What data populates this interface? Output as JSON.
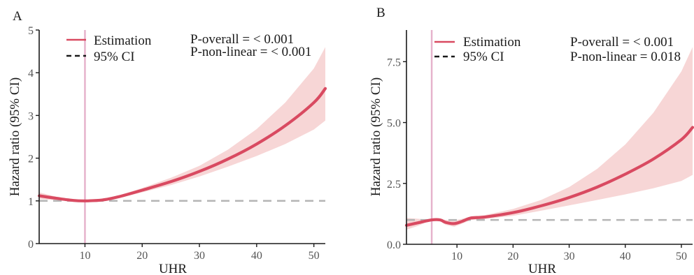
{
  "colors": {
    "estimate": "#d94a61",
    "ci": "#f7d6d6",
    "reference": "#b5b5b5",
    "knot": "#e6b3cc"
  },
  "chart_data": [
    {
      "panel_label": "A",
      "type": "line",
      "xlabel": "UHR",
      "ylabel": "Hazard ratio (95% CI)",
      "xlim": [
        2,
        52
      ],
      "ylim": [
        0,
        5
      ],
      "xticks": [
        "10",
        "20",
        "30",
        "40",
        "50"
      ],
      "yticks": [
        "0",
        "1",
        "2",
        "3",
        "4",
        "5"
      ],
      "knot_x": 10,
      "reference_y": 1,
      "legend": {
        "position": "top-left",
        "estimate_label": "Estimation",
        "ci_label": "95% CI"
      },
      "annotations": [
        "P-overall = < 0.001",
        "P-non-linear = < 0.001"
      ],
      "series": [
        {
          "name": "Estimation",
          "x": [
            2,
            5,
            8,
            10,
            13,
            16,
            20,
            25,
            30,
            35,
            40,
            45,
            50,
            52
          ],
          "values": [
            1.12,
            1.06,
            1.01,
            1.0,
            1.02,
            1.1,
            1.25,
            1.45,
            1.69,
            1.98,
            2.33,
            2.76,
            3.3,
            3.63
          ]
        },
        {
          "name": "95% CI upper",
          "x": [
            2,
            5,
            8,
            10,
            13,
            16,
            20,
            25,
            30,
            35,
            40,
            45,
            50,
            52
          ],
          "values": [
            1.2,
            1.1,
            1.03,
            1.0,
            1.04,
            1.13,
            1.3,
            1.54,
            1.82,
            2.2,
            2.68,
            3.3,
            4.1,
            4.6
          ]
        },
        {
          "name": "95% CI lower",
          "x": [
            2,
            5,
            8,
            10,
            13,
            16,
            20,
            25,
            30,
            35,
            40,
            45,
            50,
            52
          ],
          "values": [
            1.04,
            1.02,
            0.99,
            1.0,
            1.0,
            1.07,
            1.2,
            1.37,
            1.57,
            1.8,
            2.05,
            2.33,
            2.67,
            2.88
          ]
        }
      ]
    },
    {
      "panel_label": "B",
      "type": "line",
      "xlabel": "UHR",
      "ylabel": "Hazard ratio (95% CI)",
      "xlim": [
        1,
        52
      ],
      "ylim": [
        0,
        8.8
      ],
      "xticks": [
        "10",
        "20",
        "30",
        "40",
        "50"
      ],
      "yticks": [
        "0.0",
        "2.5",
        "5.0",
        "7.5"
      ],
      "knot_x": 5.5,
      "reference_y": 1,
      "legend": {
        "position": "top-left",
        "estimate_label": "Estimation",
        "ci_label": "95% CI"
      },
      "annotations": [
        "P-overall = < 0.001",
        "P-non-linear = 0.018"
      ],
      "series": [
        {
          "name": "Estimation",
          "x": [
            1,
            3,
            5.5,
            7,
            8,
            9.5,
            11,
            12.5,
            15,
            20,
            25,
            30,
            35,
            40,
            45,
            50,
            52
          ],
          "values": [
            0.78,
            0.88,
            1.0,
            1.0,
            0.9,
            0.85,
            0.95,
            1.08,
            1.12,
            1.3,
            1.58,
            1.92,
            2.35,
            2.88,
            3.5,
            4.3,
            4.8
          ]
        },
        {
          "name": "95% CI upper",
          "x": [
            1,
            3,
            5.5,
            7,
            8,
            9.5,
            11,
            12.5,
            15,
            20,
            25,
            30,
            35,
            40,
            45,
            50,
            52
          ],
          "values": [
            1.08,
            1.05,
            1.0,
            1.05,
            1.0,
            0.98,
            1.05,
            1.15,
            1.2,
            1.45,
            1.82,
            2.35,
            3.1,
            4.1,
            5.4,
            7.1,
            8.1
          ]
        },
        {
          "name": "95% CI lower",
          "x": [
            1,
            3,
            5.5,
            7,
            8,
            9.5,
            11,
            12.5,
            15,
            20,
            25,
            30,
            35,
            40,
            45,
            50,
            52
          ],
          "values": [
            0.6,
            0.75,
            1.0,
            0.95,
            0.8,
            0.72,
            0.85,
            1.0,
            1.04,
            1.17,
            1.38,
            1.6,
            1.82,
            2.05,
            2.3,
            2.6,
            2.85
          ]
        }
      ]
    }
  ]
}
